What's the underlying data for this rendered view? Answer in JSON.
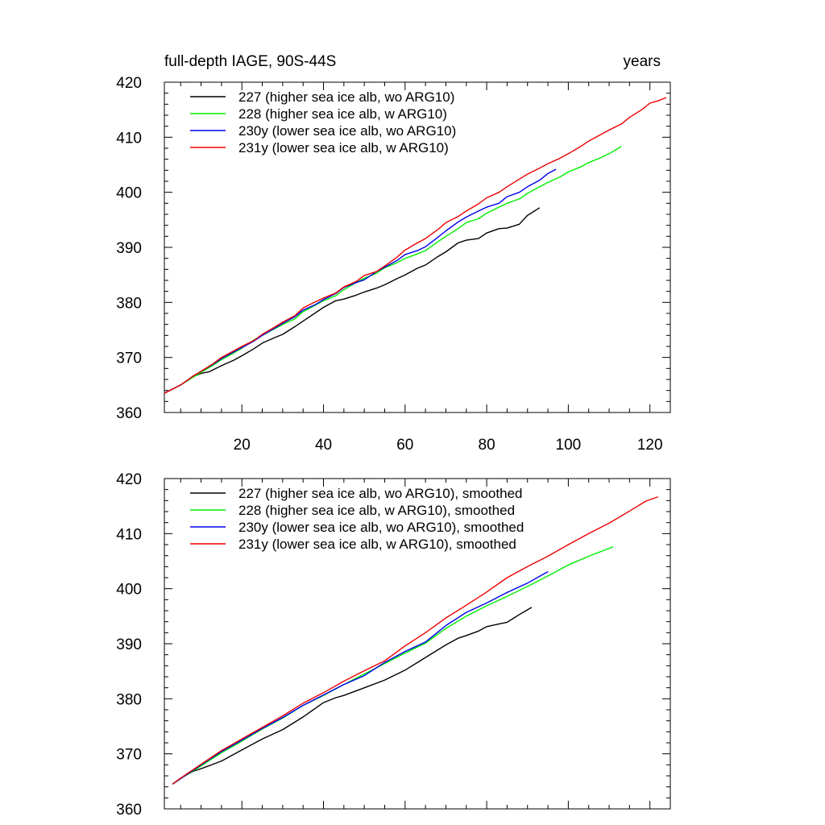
{
  "chart_data": [
    {
      "type": "line",
      "title_left": "full-depth IAGE, 90S-44S",
      "title_right": "years",
      "xlim": [
        1,
        125
      ],
      "ylim": [
        360,
        420
      ],
      "xticks": [
        20,
        40,
        60,
        80,
        100,
        120
      ],
      "yticks": [
        360,
        370,
        380,
        390,
        400,
        410,
        420
      ],
      "show_x_tick_labels": true,
      "series": [
        {
          "name": "227 (higher sea ice alb, wo ARG10)",
          "color": "#000000",
          "x": [
            1,
            5,
            8,
            10,
            12,
            15,
            18,
            20,
            23,
            25,
            28,
            30,
            33,
            35,
            38,
            40,
            43,
            45,
            48,
            50,
            53,
            55,
            58,
            60,
            63,
            65,
            68,
            70,
            73,
            75,
            78,
            80,
            83,
            85,
            88,
            90,
            93
          ],
          "y": [
            363.5,
            365.0,
            366.5,
            367.1,
            367.4,
            368.5,
            369.5,
            370.3,
            371.6,
            372.6,
            373.6,
            374.2,
            375.6,
            376.6,
            378.1,
            379.1,
            380.3,
            380.6,
            381.3,
            381.9,
            382.6,
            383.2,
            384.3,
            385.0,
            386.2,
            386.8,
            388.3,
            389.2,
            390.8,
            391.3,
            391.6,
            392.6,
            393.4,
            393.5,
            394.2,
            395.8,
            397.2
          ]
        },
        {
          "name": "228 (higher sea ice alb, w ARG10)",
          "color": "#00ee00",
          "x": [
            1,
            5,
            8,
            10,
            13,
            15,
            18,
            20,
            23,
            25,
            28,
            30,
            33,
            35,
            38,
            40,
            43,
            45,
            48,
            50,
            53,
            55,
            58,
            60,
            63,
            65,
            68,
            70,
            73,
            75,
            78,
            80,
            83,
            85,
            88,
            90,
            93,
            95,
            98,
            100,
            103,
            105,
            108,
            110,
            113
          ],
          "y": [
            363.5,
            365.0,
            366.4,
            367.3,
            368.6,
            369.6,
            370.8,
            371.7,
            373.2,
            374.0,
            375.2,
            376.0,
            377.0,
            378.3,
            379.5,
            380.3,
            381.2,
            382.3,
            383.6,
            384.4,
            385.3,
            386.3,
            387.2,
            388.0,
            388.8,
            389.4,
            391.0,
            392.0,
            393.4,
            394.5,
            395.2,
            396.2,
            397.3,
            398.0,
            398.8,
            399.8,
            401.0,
            401.8,
            402.8,
            403.7,
            404.6,
            405.4,
            406.3,
            407.0,
            408.3
          ]
        },
        {
          "name": "230y (lower sea ice alb, wo ARG10)",
          "color": "#0000ee",
          "x": [
            1,
            5,
            8,
            10,
            13,
            15,
            18,
            20,
            23,
            25,
            28,
            30,
            33,
            35,
            38,
            40,
            43,
            45,
            48,
            50,
            53,
            55,
            58,
            60,
            63,
            65,
            68,
            70,
            73,
            75,
            78,
            80,
            83,
            85,
            88,
            90,
            93,
            95,
            97
          ],
          "y": [
            363.5,
            365.0,
            366.6,
            367.5,
            368.8,
            369.8,
            371.0,
            371.8,
            373.0,
            374.0,
            375.3,
            376.2,
            377.4,
            378.6,
            379.6,
            380.5,
            381.6,
            382.7,
            383.6,
            384.1,
            385.6,
            386.4,
            387.6,
            388.7,
            389.4,
            390.1,
            391.8,
            393.0,
            394.6,
            395.5,
            396.6,
            397.3,
            398.0,
            399.2,
            400.0,
            401.0,
            402.2,
            403.4,
            404.2
          ]
        },
        {
          "name": "231y (lower sea ice alb, w ARG10)",
          "color": "#ee0000",
          "x": [
            1,
            5,
            8,
            10,
            13,
            15,
            18,
            20,
            23,
            25,
            28,
            30,
            33,
            35,
            38,
            40,
            43,
            45,
            48,
            50,
            53,
            55,
            58,
            60,
            63,
            65,
            68,
            70,
            73,
            75,
            78,
            80,
            83,
            85,
            88,
            90,
            93,
            95,
            98,
            100,
            103,
            105,
            108,
            110,
            113,
            115,
            118,
            120,
            122,
            124
          ],
          "y": [
            363.5,
            365.0,
            366.6,
            367.5,
            368.9,
            370.0,
            371.2,
            372.0,
            373.1,
            374.2,
            375.5,
            376.4,
            377.6,
            379.0,
            380.1,
            380.8,
            381.7,
            382.8,
            383.8,
            384.9,
            385.6,
            386.6,
            388.2,
            389.5,
            390.8,
            391.6,
            393.2,
            394.5,
            395.6,
            396.6,
            397.9,
            399.0,
            400.0,
            401.0,
            402.4,
            403.3,
            404.4,
            405.2,
            406.2,
            407.0,
            408.3,
            409.3,
            410.5,
            411.3,
            412.4,
            413.6,
            415.0,
            416.2,
            416.6,
            417.2
          ]
        }
      ]
    },
    {
      "type": "line",
      "title_left": "",
      "title_right": "",
      "xlim": [
        1,
        125
      ],
      "ylim": [
        360,
        420
      ],
      "xticks": [
        20,
        40,
        60,
        80,
        100,
        120
      ],
      "yticks": [
        360,
        370,
        380,
        390,
        400,
        410,
        420
      ],
      "show_x_tick_labels": false,
      "series": [
        {
          "name": "227 (higher sea ice alb, wo ARG10), smoothed",
          "color": "#000000",
          "x": [
            3,
            5,
            8,
            10,
            15,
            20,
            25,
            30,
            35,
            40,
            43,
            45,
            50,
            55,
            60,
            65,
            70,
            73,
            75,
            78,
            80,
            83,
            85,
            88,
            91
          ],
          "y": [
            364.5,
            365.6,
            366.8,
            367.3,
            368.7,
            370.7,
            372.7,
            374.4,
            376.7,
            379.3,
            380.2,
            380.6,
            382.0,
            383.4,
            385.2,
            387.5,
            389.8,
            391.0,
            391.5,
            392.3,
            393.1,
            393.6,
            393.9,
            395.3,
            396.6
          ]
        },
        {
          "name": "228 (higher sea ice alb, w ARG10), smoothed",
          "color": "#00ee00",
          "x": [
            3,
            5,
            10,
            15,
            20,
            25,
            30,
            35,
            40,
            45,
            50,
            55,
            60,
            65,
            70,
            75,
            80,
            85,
            90,
            95,
            100,
            105,
            111
          ],
          "y": [
            364.5,
            365.5,
            367.8,
            370.2,
            372.3,
            374.5,
            376.5,
            378.8,
            380.6,
            382.6,
            384.5,
            386.4,
            388.3,
            390.1,
            392.8,
            395.0,
            396.9,
            398.6,
            400.4,
            402.3,
            404.3,
            405.9,
            407.6
          ]
        },
        {
          "name": "230y (lower sea ice alb, wo ARG10), smoothed",
          "color": "#0000ee",
          "x": [
            3,
            5,
            10,
            15,
            20,
            25,
            30,
            35,
            40,
            45,
            50,
            55,
            60,
            65,
            70,
            75,
            80,
            85,
            90,
            95
          ],
          "y": [
            364.5,
            365.5,
            368.0,
            370.4,
            372.5,
            374.6,
            376.6,
            378.8,
            380.7,
            382.6,
            384.2,
            386.6,
            388.6,
            390.3,
            393.3,
            395.7,
            397.4,
            399.3,
            401.0,
            403.1
          ]
        },
        {
          "name": "231y (lower sea ice alb, w ARG10), smoothed",
          "color": "#ee0000",
          "x": [
            3,
            5,
            10,
            15,
            20,
            25,
            30,
            35,
            40,
            45,
            50,
            55,
            60,
            65,
            70,
            75,
            80,
            85,
            90,
            95,
            100,
            105,
            110,
            115,
            119,
            122
          ],
          "y": [
            364.5,
            365.6,
            368.1,
            370.6,
            372.7,
            374.8,
            376.9,
            379.2,
            381.1,
            383.2,
            385.1,
            386.9,
            389.6,
            392.0,
            394.7,
            397.0,
            399.4,
            402.0,
            404.0,
            405.9,
            408.0,
            410.0,
            411.9,
            414.1,
            415.9,
            416.7
          ]
        }
      ]
    }
  ]
}
